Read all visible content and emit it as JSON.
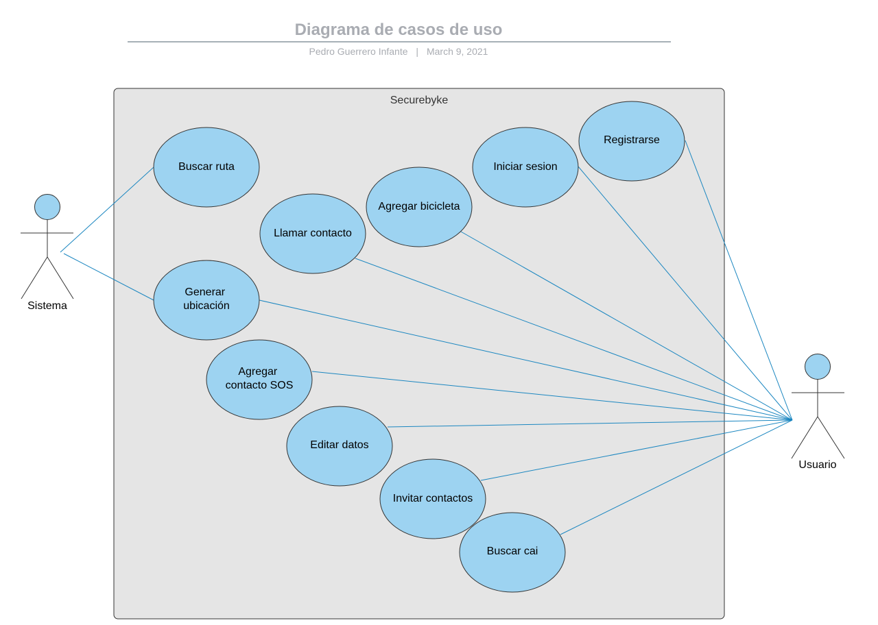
{
  "header": {
    "title": "Diagrama de casos de uso",
    "author": "Pedro Guerrero Infante",
    "separator": "|",
    "date": "March 9, 2021"
  },
  "diagram": {
    "system": {
      "name": "Securebyke"
    },
    "actors": [
      {
        "id": "sistema",
        "label": "Sistema"
      },
      {
        "id": "usuario",
        "label": "Usuario"
      }
    ],
    "use_cases": [
      {
        "id": "buscar-ruta",
        "lines": [
          "Buscar ruta"
        ]
      },
      {
        "id": "generar-ubicacion",
        "lines": [
          "Generar",
          "ubicación"
        ]
      },
      {
        "id": "llamar-contacto",
        "lines": [
          "Llamar contacto"
        ]
      },
      {
        "id": "agregar-bicicleta",
        "lines": [
          "Agregar bicicleta"
        ]
      },
      {
        "id": "iniciar-sesion",
        "lines": [
          "Iniciar sesion"
        ]
      },
      {
        "id": "registrarse",
        "lines": [
          "Registrarse"
        ]
      },
      {
        "id": "agregar-contacto-sos",
        "lines": [
          "Agregar",
          "contacto SOS"
        ]
      },
      {
        "id": "editar-datos",
        "lines": [
          "Editar datos"
        ]
      },
      {
        "id": "invitar-contactos",
        "lines": [
          "Invitar contactos"
        ]
      },
      {
        "id": "buscar-cai",
        "lines": [
          "Buscar cai"
        ]
      }
    ],
    "associations": [
      {
        "actor": "sistema",
        "use_case": "buscar-ruta"
      },
      {
        "actor": "sistema",
        "use_case": "generar-ubicacion"
      },
      {
        "actor": "usuario",
        "use_case": "registrarse"
      },
      {
        "actor": "usuario",
        "use_case": "iniciar-sesion"
      },
      {
        "actor": "usuario",
        "use_case": "agregar-bicicleta"
      },
      {
        "actor": "usuario",
        "use_case": "llamar-contacto"
      },
      {
        "actor": "usuario",
        "use_case": "generar-ubicacion"
      },
      {
        "actor": "usuario",
        "use_case": "agregar-contacto-sos"
      },
      {
        "actor": "usuario",
        "use_case": "editar-datos"
      },
      {
        "actor": "usuario",
        "use_case": "invitar-contactos"
      },
      {
        "actor": "usuario",
        "use_case": "buscar-cai"
      }
    ],
    "colors": {
      "use_case_fill": "#9dd3f1",
      "association_line": "#1a86c0",
      "system_fill": "#e5e5e5",
      "system_stroke": "#333333",
      "actor_head_fill": "#9dd3f1",
      "title_color": "#a9acb2"
    }
  }
}
